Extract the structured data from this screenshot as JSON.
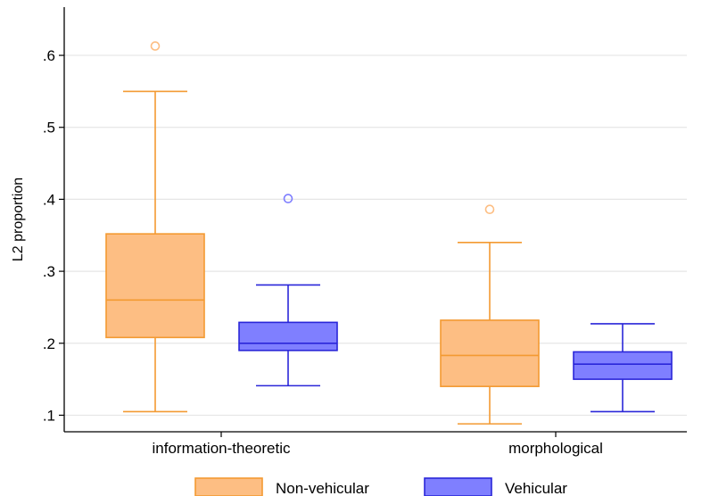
{
  "chart_data": {
    "type": "box",
    "title": "",
    "xlabel": "",
    "ylabel": "L2 proportion",
    "ylim": [
      0.077,
      0.667
    ],
    "yticks": [
      0.1,
      0.2,
      0.3,
      0.4,
      0.5,
      0.6
    ],
    "ytick_labels": [
      ".1",
      ".2",
      ".3",
      ".4",
      ".5",
      ".6"
    ],
    "grid": true,
    "legend_position": "bottom",
    "categories": [
      "information-theoretic",
      "morphological"
    ],
    "series": [
      {
        "name": "Non-vehicular",
        "fill_color": "#FDBE83",
        "line_color": "#F39A32",
        "boxes": [
          {
            "whisker_low": 0.105,
            "q1": 0.208,
            "median": 0.26,
            "q3": 0.352,
            "whisker_high": 0.55,
            "outliers": [
              0.613
            ]
          },
          {
            "whisker_low": 0.088,
            "q1": 0.14,
            "median": 0.183,
            "q3": 0.232,
            "whisker_high": 0.34,
            "outliers": [
              0.386
            ]
          }
        ]
      },
      {
        "name": "Vehicular",
        "fill_color": "#7F7FFF",
        "line_color": "#2A26D9",
        "boxes": [
          {
            "whisker_low": 0.141,
            "q1": 0.19,
            "median": 0.2,
            "q3": 0.229,
            "whisker_high": 0.281,
            "outliers": [
              0.401
            ]
          },
          {
            "whisker_low": 0.105,
            "q1": 0.15,
            "median": 0.171,
            "q3": 0.188,
            "whisker_high": 0.227,
            "outliers": []
          }
        ]
      }
    ],
    "colors": {
      "grid": "#E6E6E6",
      "axis": "#000000",
      "background": "#FFFFFF"
    }
  }
}
